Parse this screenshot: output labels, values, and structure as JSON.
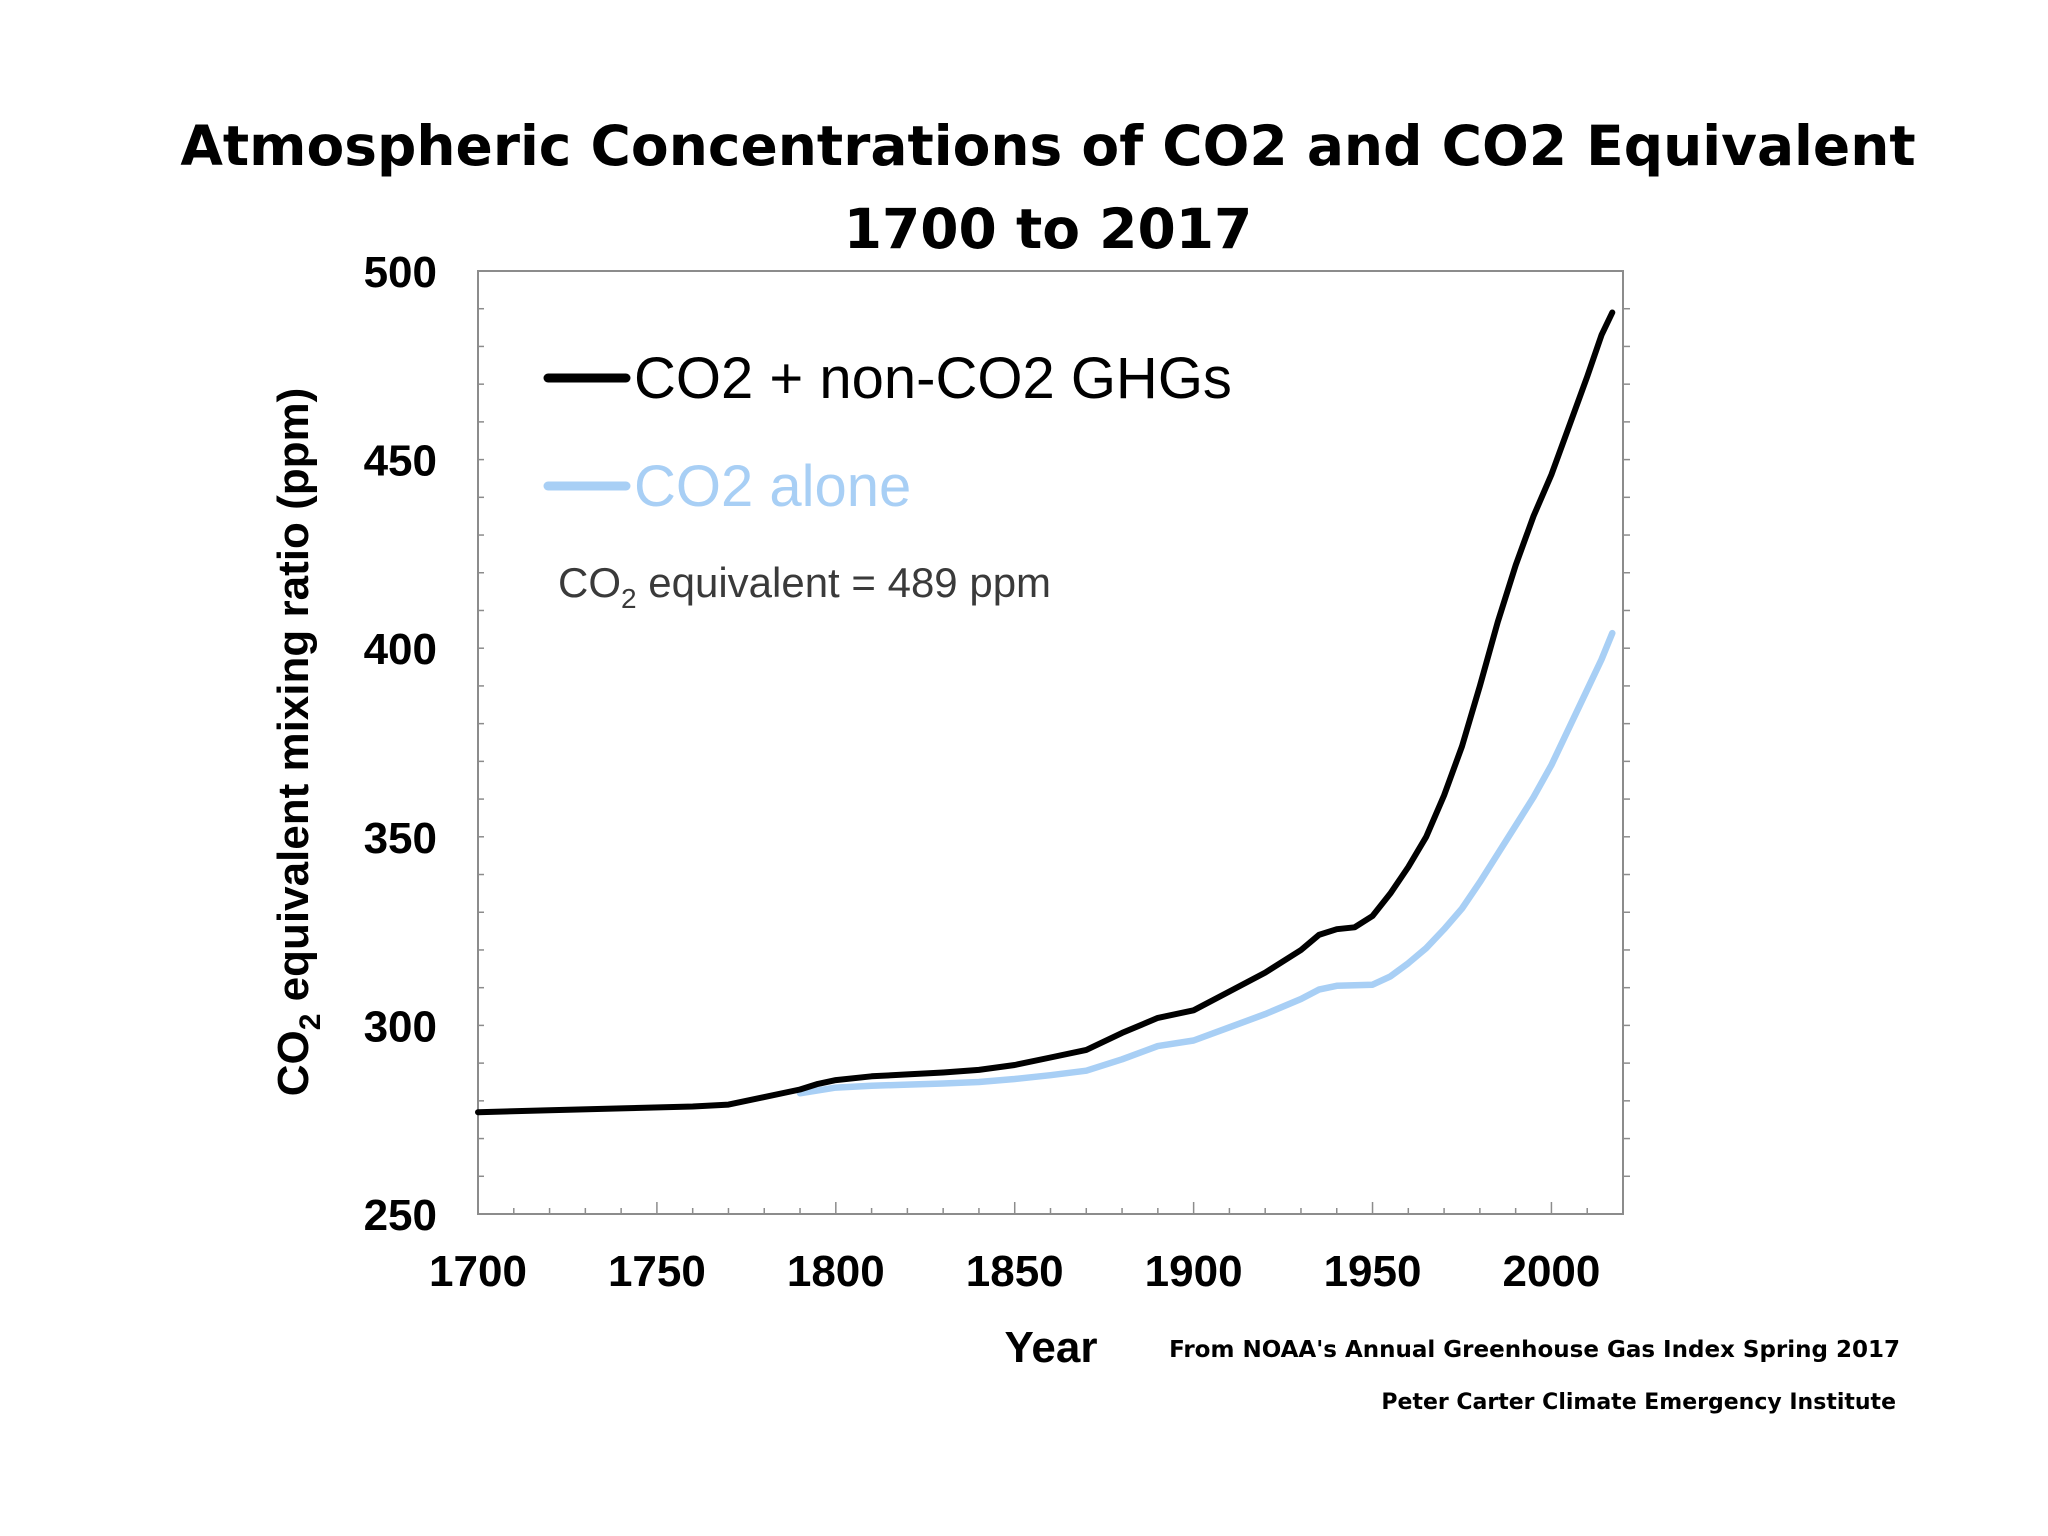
{
  "chart_data": {
    "type": "line",
    "title_line1": "Atmospheric Concentrations of CO2 and CO2  Equivalent",
    "title_line2": "1700 to 2017",
    "xlabel": "Year",
    "ylabel_prefix": "CO",
    "ylabel_sub": "2",
    "ylabel_suffix": " equivalent mixing ratio (ppm)",
    "xlim": [
      1700,
      2020
    ],
    "ylim": [
      250,
      500
    ],
    "xticks": [
      1700,
      1750,
      1800,
      1850,
      1900,
      1950,
      2000
    ],
    "yticks": [
      250,
      300,
      350,
      400,
      450,
      500
    ],
    "series": [
      {
        "name": "CO2 + non-CO2 GHGs",
        "color": "#000000",
        "x": [
          1700,
          1720,
          1740,
          1760,
          1770,
          1780,
          1790,
          1795,
          1800,
          1810,
          1820,
          1830,
          1840,
          1850,
          1860,
          1870,
          1880,
          1890,
          1900,
          1910,
          1920,
          1930,
          1935,
          1940,
          1945,
          1950,
          1955,
          1960,
          1965,
          1970,
          1975,
          1980,
          1985,
          1990,
          1995,
          2000,
          2005,
          2010,
          2014,
          2017
        ],
        "values": [
          277,
          277.5,
          278,
          278.5,
          279,
          281,
          283,
          284.5,
          285.5,
          286.5,
          287,
          287.5,
          288.2,
          289.5,
          291.5,
          293.5,
          298,
          302,
          304,
          309,
          314,
          320,
          324,
          325.5,
          326,
          329,
          335,
          342,
          350,
          361,
          374,
          390,
          407,
          422,
          435,
          446,
          459,
          472,
          483,
          489
        ]
      },
      {
        "name": "CO2 alone",
        "color": "#a8cff5",
        "x": [
          1790,
          1800,
          1810,
          1820,
          1830,
          1840,
          1850,
          1860,
          1870,
          1880,
          1890,
          1900,
          1910,
          1920,
          1930,
          1935,
          1940,
          1950,
          1955,
          1960,
          1965,
          1970,
          1975,
          1980,
          1985,
          1990,
          1995,
          2000,
          2005,
          2010,
          2014,
          2017
        ],
        "values": [
          282,
          283.5,
          284,
          284.3,
          284.6,
          285,
          285.8,
          286.8,
          288,
          291,
          294.5,
          296,
          299.5,
          303,
          307,
          309.5,
          310.5,
          310.8,
          313,
          316.5,
          320.5,
          325.5,
          331,
          338,
          345.5,
          353,
          360.5,
          369,
          379,
          389,
          397,
          404
        ]
      }
    ],
    "legend": [
      {
        "label": "CO2 + non-CO2 GHGs",
        "color": "#000000"
      },
      {
        "label": "CO2 alone",
        "color": "#a8cff5"
      }
    ],
    "annotation": {
      "prefix": "CO",
      "sub": "2",
      "suffix": " equivalent = 489 ppm"
    }
  },
  "footer": {
    "source": "From NOAA's Annual Greenhouse Gas Index Spring 2017",
    "credit": "Peter Carter  Climate Emergency Institute"
  }
}
